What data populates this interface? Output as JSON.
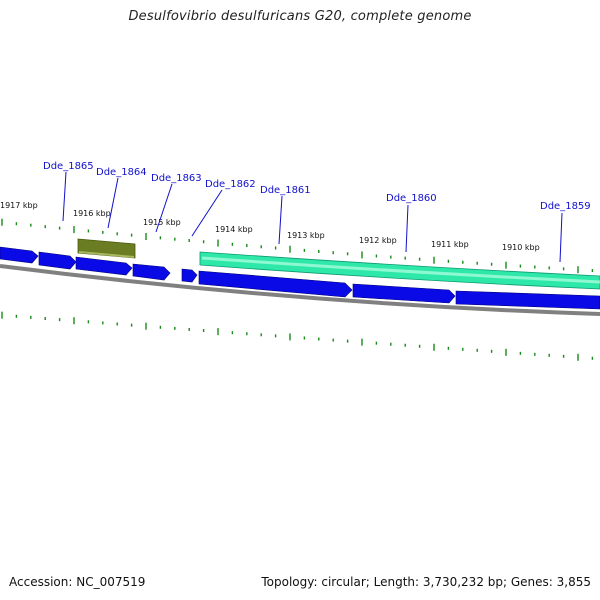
{
  "title": "Desulfovibrio desulfuricans G20, complete genome",
  "scale_labels": [
    "1917 kbp",
    "1916 kbp",
    "1915 kbp",
    "1914 kbp",
    "1913 kbp",
    "1912 kbp",
    "1911 kbp",
    "1910 kbp"
  ],
  "gene_labels": [
    "Dde_1865",
    "Dde_1864",
    "Dde_1863",
    "Dde_1862",
    "Dde_1861",
    "Dde_1860",
    "Dde_1859"
  ],
  "colors": {
    "gene_forward": "#0a0ae6",
    "gene_rna": "#6b7d22",
    "gene_highlight": "#2de8a8",
    "backbone": "#808080",
    "tick": "#1a8a1a",
    "label": "#1010cc"
  },
  "footer": {
    "accession": "Accession: NC_007519",
    "summary": "Topology: circular; Length: 3,730,232 bp; Genes: 3,855"
  }
}
